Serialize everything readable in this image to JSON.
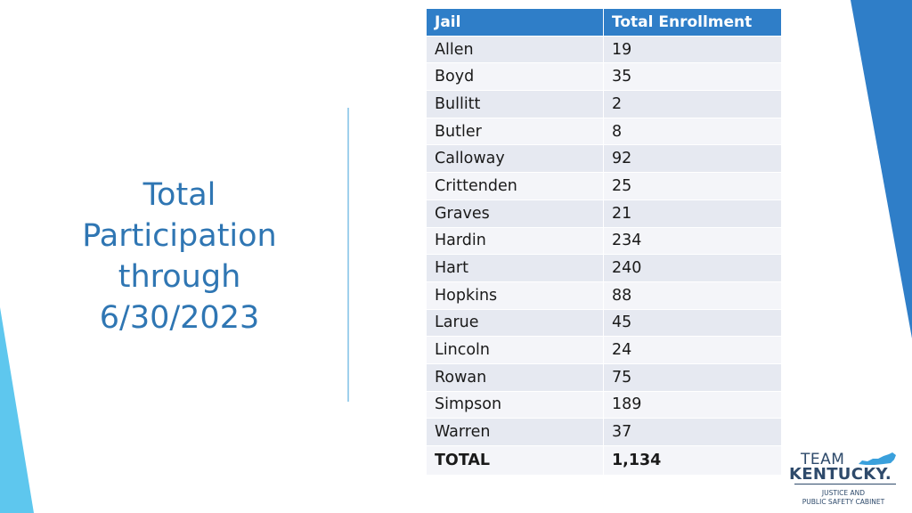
{
  "slide": {
    "title_lines": [
      "Total",
      "Participation",
      "through",
      "6/30/2023"
    ]
  },
  "table": {
    "headers": [
      "Jail",
      "Total Enrollment"
    ],
    "rows": [
      [
        "Allen",
        "19"
      ],
      [
        "Boyd",
        "35"
      ],
      [
        "Bullitt",
        "2"
      ],
      [
        "Butler",
        "8"
      ],
      [
        "Calloway",
        "92"
      ],
      [
        "Crittenden",
        "25"
      ],
      [
        "Graves",
        "21"
      ],
      [
        "Hardin",
        "234"
      ],
      [
        "Hart",
        "240"
      ],
      [
        "Hopkins",
        "88"
      ],
      [
        "Larue",
        "45"
      ],
      [
        "Lincoln",
        "24"
      ],
      [
        "Rowan",
        "75"
      ],
      [
        "Simpson",
        "189"
      ],
      [
        "Warren",
        "37"
      ]
    ],
    "total": [
      "TOTAL",
      "1,134"
    ]
  },
  "logo": {
    "team": "TEAM",
    "state": "KENTUCKY.",
    "line1": "JUSTICE AND",
    "line2": "PUBLIC SAFETY CABINET"
  },
  "colors": {
    "header": "#2f7ec8",
    "title": "#2f76b3",
    "accent_dark": "#2f7ec8",
    "accent_light": "#5ec7ee"
  }
}
